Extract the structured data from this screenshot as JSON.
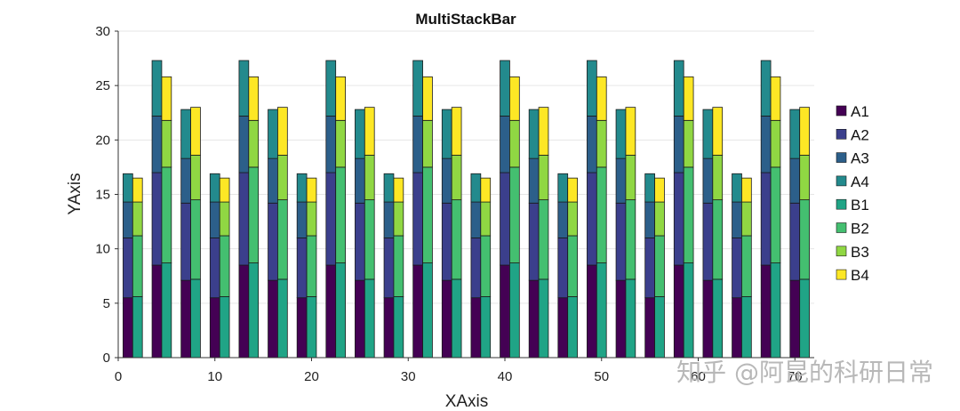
{
  "chart_data": {
    "type": "bar",
    "stacked": true,
    "title": "MultiStackBar",
    "xlabel": "XAxis",
    "ylabel": "YAxis",
    "xlim": [
      0,
      72
    ],
    "ylim": [
      0,
      30
    ],
    "xticks": [
      "0",
      "10",
      "20",
      "30",
      "40",
      "50",
      "60",
      "70"
    ],
    "yticks": [
      "0",
      "5",
      "10",
      "15",
      "20",
      "25",
      "30"
    ],
    "grid": "horizontal",
    "legend_position": "right",
    "stacks": [
      {
        "name": "A",
        "x": [
          1,
          4,
          7,
          10,
          13,
          16,
          19,
          22,
          25,
          28,
          31,
          34,
          37,
          40,
          43,
          46,
          49,
          52,
          55,
          58,
          61,
          64,
          67,
          70
        ],
        "series": [
          {
            "name": "A1",
            "color": "#440154",
            "values": [
              5.5,
              8.5,
              7.1,
              5.5,
              8.5,
              7.1,
              5.5,
              8.5,
              7.1,
              5.5,
              8.5,
              7.1,
              5.5,
              8.5,
              7.1,
              5.5,
              8.5,
              7.1,
              5.5,
              8.5,
              7.1,
              5.5,
              8.5,
              7.1
            ]
          },
          {
            "name": "A2",
            "color": "#3b3f8c",
            "values": [
              5.5,
              8.5,
              7.1,
              5.5,
              8.5,
              7.1,
              5.5,
              8.5,
              7.1,
              5.5,
              8.5,
              7.1,
              5.5,
              8.5,
              7.1,
              5.5,
              8.5,
              7.1,
              5.5,
              8.5,
              7.1,
              5.5,
              8.5,
              7.1
            ]
          },
          {
            "name": "A3",
            "color": "#2c5f8a",
            "values": [
              3.3,
              5.2,
              4.1,
              3.3,
              5.2,
              4.1,
              3.3,
              5.2,
              4.1,
              3.3,
              5.2,
              4.1,
              3.3,
              5.2,
              4.1,
              3.3,
              5.2,
              4.1,
              3.3,
              5.2,
              4.1,
              3.3,
              5.2,
              4.1
            ]
          },
          {
            "name": "A4",
            "color": "#238a8d",
            "values": [
              2.6,
              5.1,
              4.5,
              2.6,
              5.1,
              4.5,
              2.6,
              5.1,
              4.5,
              2.6,
              5.1,
              4.5,
              2.6,
              5.1,
              4.5,
              2.6,
              5.1,
              4.5,
              2.6,
              5.1,
              4.5,
              2.6,
              5.1,
              4.5
            ]
          }
        ]
      },
      {
        "name": "B",
        "x": [
          2,
          5,
          8,
          11,
          14,
          17,
          20,
          23,
          26,
          29,
          32,
          35,
          38,
          41,
          44,
          47,
          50,
          53,
          56,
          59,
          62,
          65,
          68,
          71
        ],
        "series": [
          {
            "name": "B1",
            "color": "#20a486",
            "values": [
              5.6,
              8.7,
              7.2,
              5.6,
              8.7,
              7.2,
              5.6,
              8.7,
              7.2,
              5.6,
              8.7,
              7.2,
              5.6,
              8.7,
              7.2,
              5.6,
              8.7,
              7.2,
              5.6,
              8.7,
              7.2,
              5.6,
              8.7,
              7.2
            ]
          },
          {
            "name": "B2",
            "color": "#44bf70",
            "values": [
              5.6,
              8.8,
              7.3,
              5.6,
              8.8,
              7.3,
              5.6,
              8.8,
              7.3,
              5.6,
              8.8,
              7.3,
              5.6,
              8.8,
              7.3,
              5.6,
              8.8,
              7.3,
              5.6,
              8.8,
              7.3,
              5.6,
              8.8,
              7.3
            ]
          },
          {
            "name": "B3",
            "color": "#90d743",
            "values": [
              3.1,
              4.3,
              4.1,
              3.1,
              4.3,
              4.1,
              3.1,
              4.3,
              4.1,
              3.1,
              4.3,
              4.1,
              3.1,
              4.3,
              4.1,
              3.1,
              4.3,
              4.1,
              3.1,
              4.3,
              4.1,
              3.1,
              4.3,
              4.1
            ]
          },
          {
            "name": "B4",
            "color": "#fde725",
            "values": [
              2.2,
              4.0,
              4.4,
              2.2,
              4.0,
              4.4,
              2.2,
              4.0,
              4.4,
              2.2,
              4.0,
              4.4,
              2.2,
              4.0,
              4.4,
              2.2,
              4.0,
              4.4,
              2.2,
              4.0,
              4.4,
              2.2,
              4.0,
              4.4
            ]
          }
        ]
      }
    ]
  },
  "watermark": "知乎 @阿昆的科研日常"
}
